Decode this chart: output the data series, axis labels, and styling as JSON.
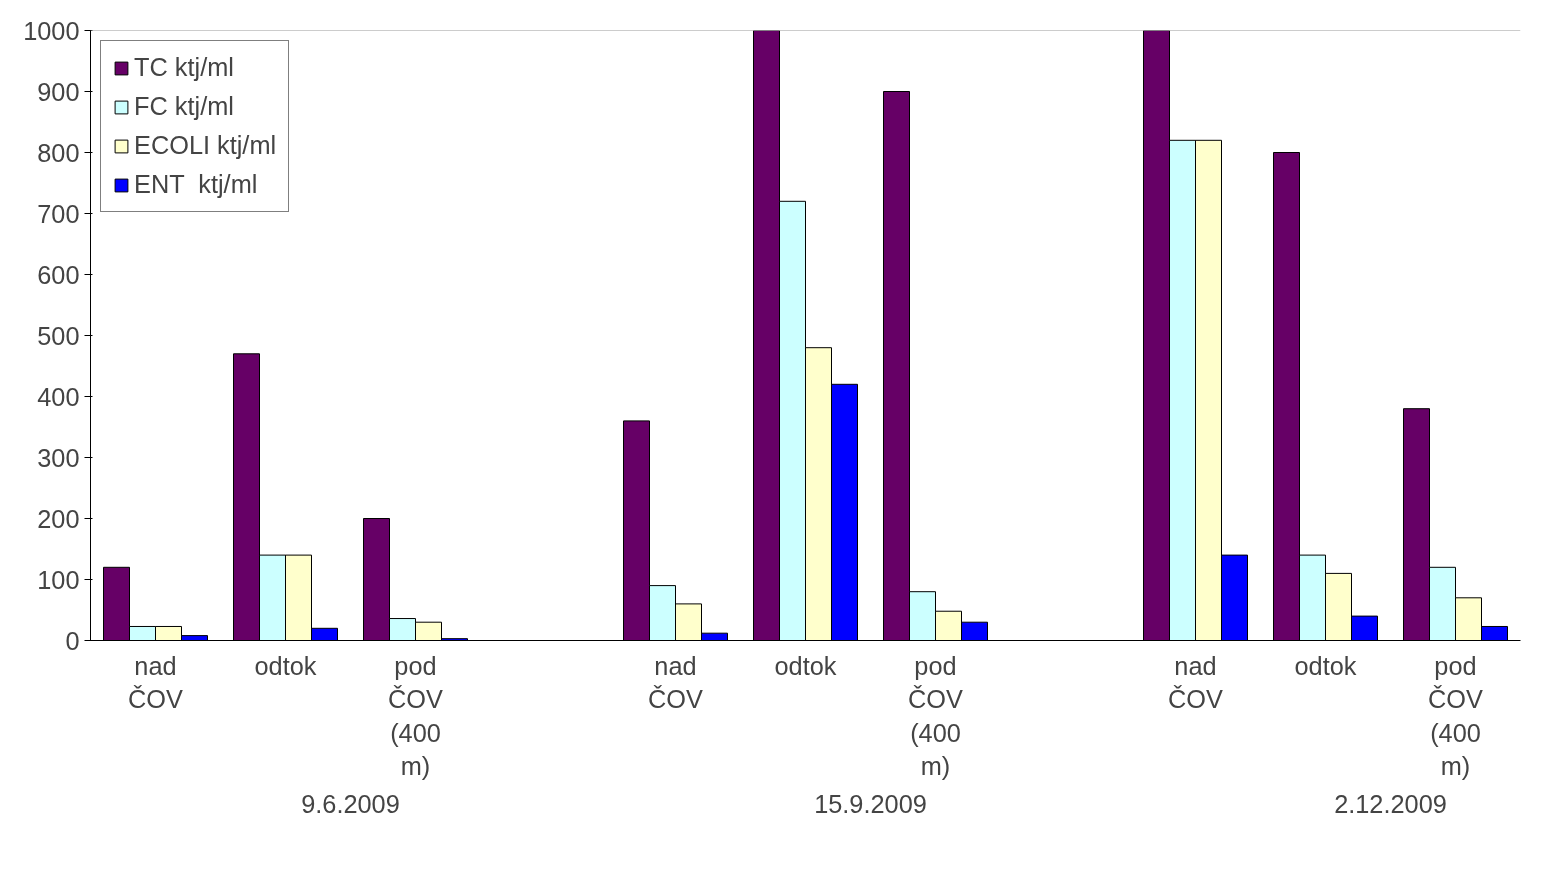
{
  "chart_data": {
    "type": "bar",
    "categories": [
      "nad ČOV",
      "odtok",
      "pod ČOV (400 m)",
      null,
      "nad ČOV",
      "odtok",
      "pod ČOV (400 m)",
      null,
      "nad ČOV",
      "odtok",
      "pod ČOV (400 m)"
    ],
    "series": [
      {
        "name": "TC ktj/ml",
        "color": "#660066",
        "values": [
          120,
          470,
          200,
          null,
          360,
          1000,
          900,
          null,
          1000,
          800,
          380
        ]
      },
      {
        "name": "FC ktj/ml",
        "color": "#ccffff",
        "values": [
          23,
          140,
          36,
          null,
          90,
          720,
          80,
          null,
          820,
          140,
          120
        ]
      },
      {
        "name": "ECOLI ktj/ml",
        "color": "#ffffcc",
        "values": [
          23,
          140,
          30,
          null,
          60,
          480,
          48,
          null,
          820,
          110,
          70
        ]
      },
      {
        "name": "ENT  ktj/ml",
        "color": "#0000ff",
        "values": [
          8,
          20,
          3,
          null,
          12,
          420,
          30,
          null,
          140,
          40,
          23
        ]
      }
    ],
    "annotations": [
      "9.6.2009",
      "15.9.2009",
      "2.12.2009"
    ],
    "ylim": [
      0,
      1000
    ],
    "yticks": [
      0,
      100,
      200,
      300,
      400,
      500,
      600,
      700,
      800,
      900,
      1000
    ],
    "grid": false,
    "legend": "top left"
  }
}
